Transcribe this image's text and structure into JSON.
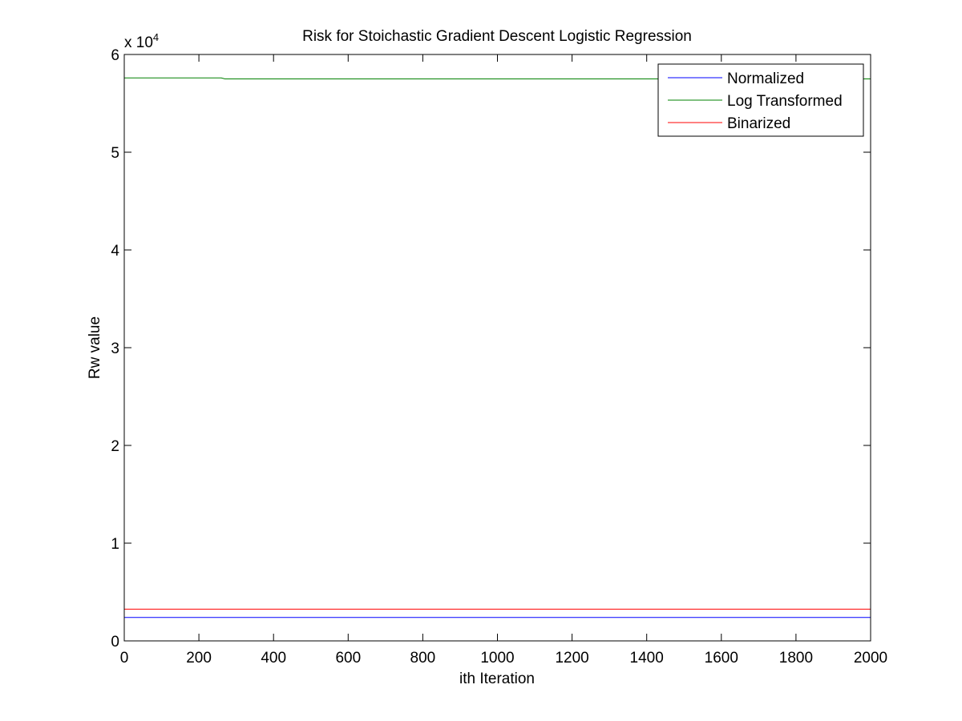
{
  "chart_data": {
    "type": "line",
    "title": "Risk for Stoichastic Gradient Descent Logistic Regression",
    "xlabel": "ith Iteration",
    "ylabel": "Rw value",
    "y_exponent_label": "x 10",
    "y_exponent_power": "4",
    "xlim": [
      0,
      2000
    ],
    "ylim": [
      0,
      6
    ],
    "y_scale_factor": 10000,
    "x_ticks": [
      "0",
      "200",
      "400",
      "600",
      "800",
      "1000",
      "1200",
      "1400",
      "1600",
      "1800",
      "2000"
    ],
    "y_ticks": [
      "0",
      "1",
      "2",
      "3",
      "4",
      "5",
      "6"
    ],
    "grid": false,
    "legend_position": "top-right",
    "series": [
      {
        "name": "Normalized",
        "color": "#0000ff",
        "x": [
          0,
          2000
        ],
        "y": [
          0.24,
          0.24
        ]
      },
      {
        "name": "Log Transformed",
        "color": "#008000",
        "x": [
          0,
          260,
          270,
          2000
        ],
        "y": [
          5.76,
          5.76,
          5.75,
          5.75
        ]
      },
      {
        "name": "Binarized",
        "color": "#ff0000",
        "x": [
          0,
          2000
        ],
        "y": [
          0.325,
          0.325
        ]
      }
    ]
  }
}
